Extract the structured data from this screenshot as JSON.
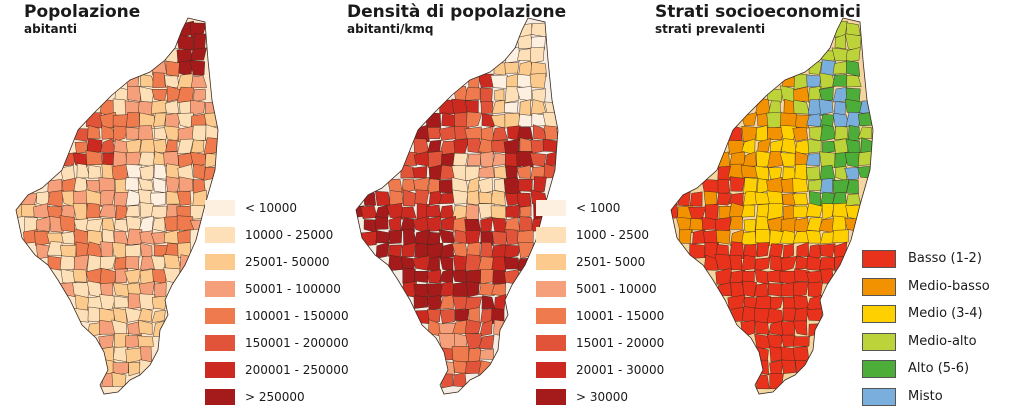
{
  "maps": [
    {
      "title": "Popolazione",
      "subtitle": "abitanti",
      "legend": [
        {
          "label": "< 10000",
          "color": "#fdf0e0"
        },
        {
          "label": "10000 - 25000",
          "color": "#fde0b8"
        },
        {
          "label": "25001- 50000",
          "color": "#fbca8c"
        },
        {
          "label": "50001 - 100000",
          "color": "#f5a07a"
        },
        {
          "label": "100001 - 150000",
          "color": "#ee7a4e"
        },
        {
          "label": "150001 - 200000",
          "color": "#e1543a"
        },
        {
          "label": "200001 - 250000",
          "color": "#cc2a20"
        },
        {
          "label": "> 250000",
          "color": "#a51b1b"
        }
      ]
    },
    {
      "title": "Densità di popolazione",
      "subtitle": "abitanti/kmq",
      "legend": [
        {
          "label": "< 1000",
          "color": "#fdf0e0"
        },
        {
          "label": "1000 - 2500",
          "color": "#fde0b8"
        },
        {
          "label": "2501- 5000",
          "color": "#fbca8c"
        },
        {
          "label": "5001 - 10000",
          "color": "#f5a07a"
        },
        {
          "label": "10001 - 15000",
          "color": "#ee7a4e"
        },
        {
          "label": "15001 - 20000",
          "color": "#e1543a"
        },
        {
          "label": "20001 - 30000",
          "color": "#cc2a20"
        },
        {
          "label": "> 30000",
          "color": "#a51b1b"
        }
      ]
    },
    {
      "title": "Strati socioeconomici",
      "subtitle": "strati prevalenti",
      "legend": [
        {
          "label": "Basso (1-2)",
          "color": "#e8321c"
        },
        {
          "label": "Medio-basso",
          "color": "#f39200"
        },
        {
          "label": "Medio (3-4)",
          "color": "#ffd000"
        },
        {
          "label": "Medio-alto",
          "color": "#bcd43a"
        },
        {
          "label": "Alto (5-6)",
          "color": "#4cad38"
        },
        {
          "label": "Misto",
          "color": "#7aaedc"
        }
      ]
    }
  ]
}
